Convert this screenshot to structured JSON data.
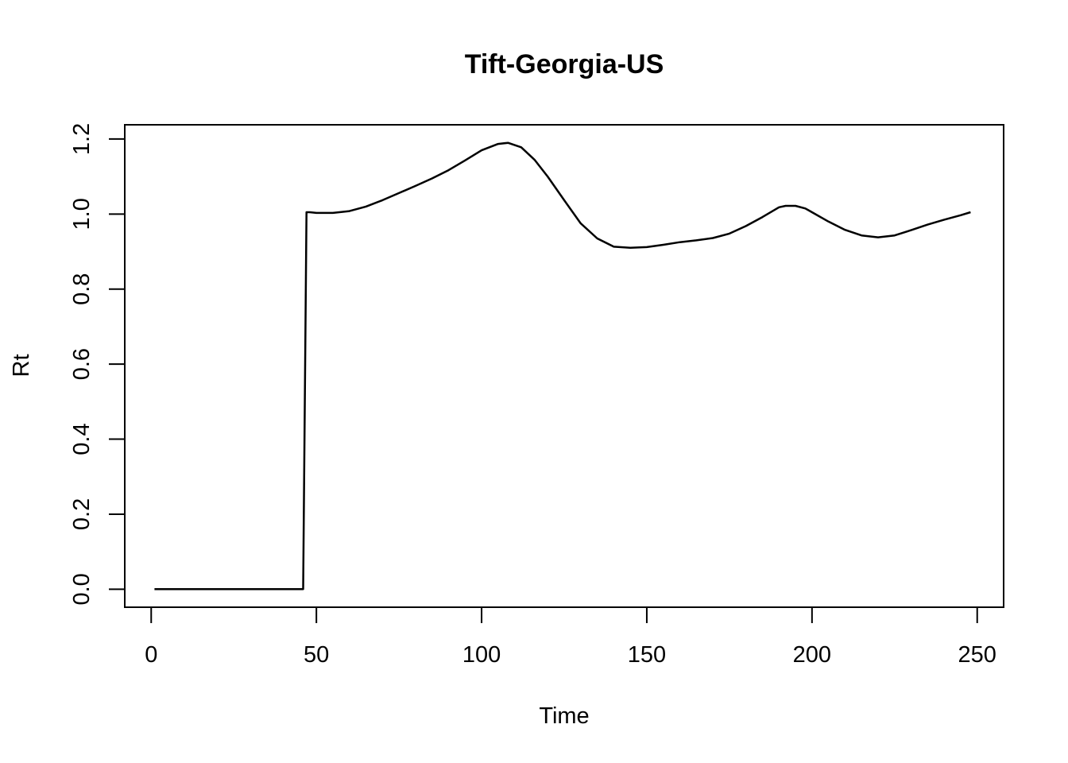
{
  "chart_data": {
    "type": "line",
    "title": "Tift-Georgia-US",
    "xlabel": "Time",
    "ylabel": "Rt",
    "xlim": [
      -8,
      258
    ],
    "ylim": [
      -0.048,
      1.238
    ],
    "xticks": [
      0,
      50,
      100,
      150,
      200,
      250
    ],
    "yticks": [
      0.0,
      0.2,
      0.4,
      0.6,
      0.8,
      1.0,
      1.2
    ],
    "xtick_labels": [
      "0",
      "50",
      "100",
      "150",
      "200",
      "250"
    ],
    "ytick_labels": [
      "0.0",
      "0.2",
      "0.4",
      "0.6",
      "0.8",
      "1.0",
      "1.2"
    ],
    "grid": false,
    "legend": "none",
    "series": [
      {
        "color": "#000000",
        "x": [
          1,
          10,
          20,
          30,
          40,
          46,
          47,
          48,
          50,
          55,
          60,
          65,
          70,
          75,
          80,
          85,
          90,
          95,
          100,
          105,
          108,
          112,
          116,
          120,
          125,
          130,
          135,
          140,
          145,
          150,
          155,
          160,
          165,
          170,
          175,
          180,
          185,
          190,
          192,
          195,
          198,
          200,
          205,
          210,
          215,
          220,
          225,
          230,
          235,
          240,
          245,
          248
        ],
        "y": [
          0.0,
          0.0,
          0.0,
          0.0,
          0.0,
          0.0,
          1.005,
          1.005,
          1.003,
          1.003,
          1.008,
          1.02,
          1.037,
          1.056,
          1.075,
          1.095,
          1.117,
          1.143,
          1.17,
          1.187,
          1.19,
          1.178,
          1.145,
          1.1,
          1.037,
          0.975,
          0.935,
          0.913,
          0.91,
          0.912,
          0.918,
          0.925,
          0.93,
          0.936,
          0.948,
          0.968,
          0.992,
          1.018,
          1.022,
          1.022,
          1.015,
          1.005,
          0.98,
          0.958,
          0.943,
          0.938,
          0.943,
          0.957,
          0.972,
          0.985,
          0.997,
          1.005
        ]
      }
    ]
  }
}
